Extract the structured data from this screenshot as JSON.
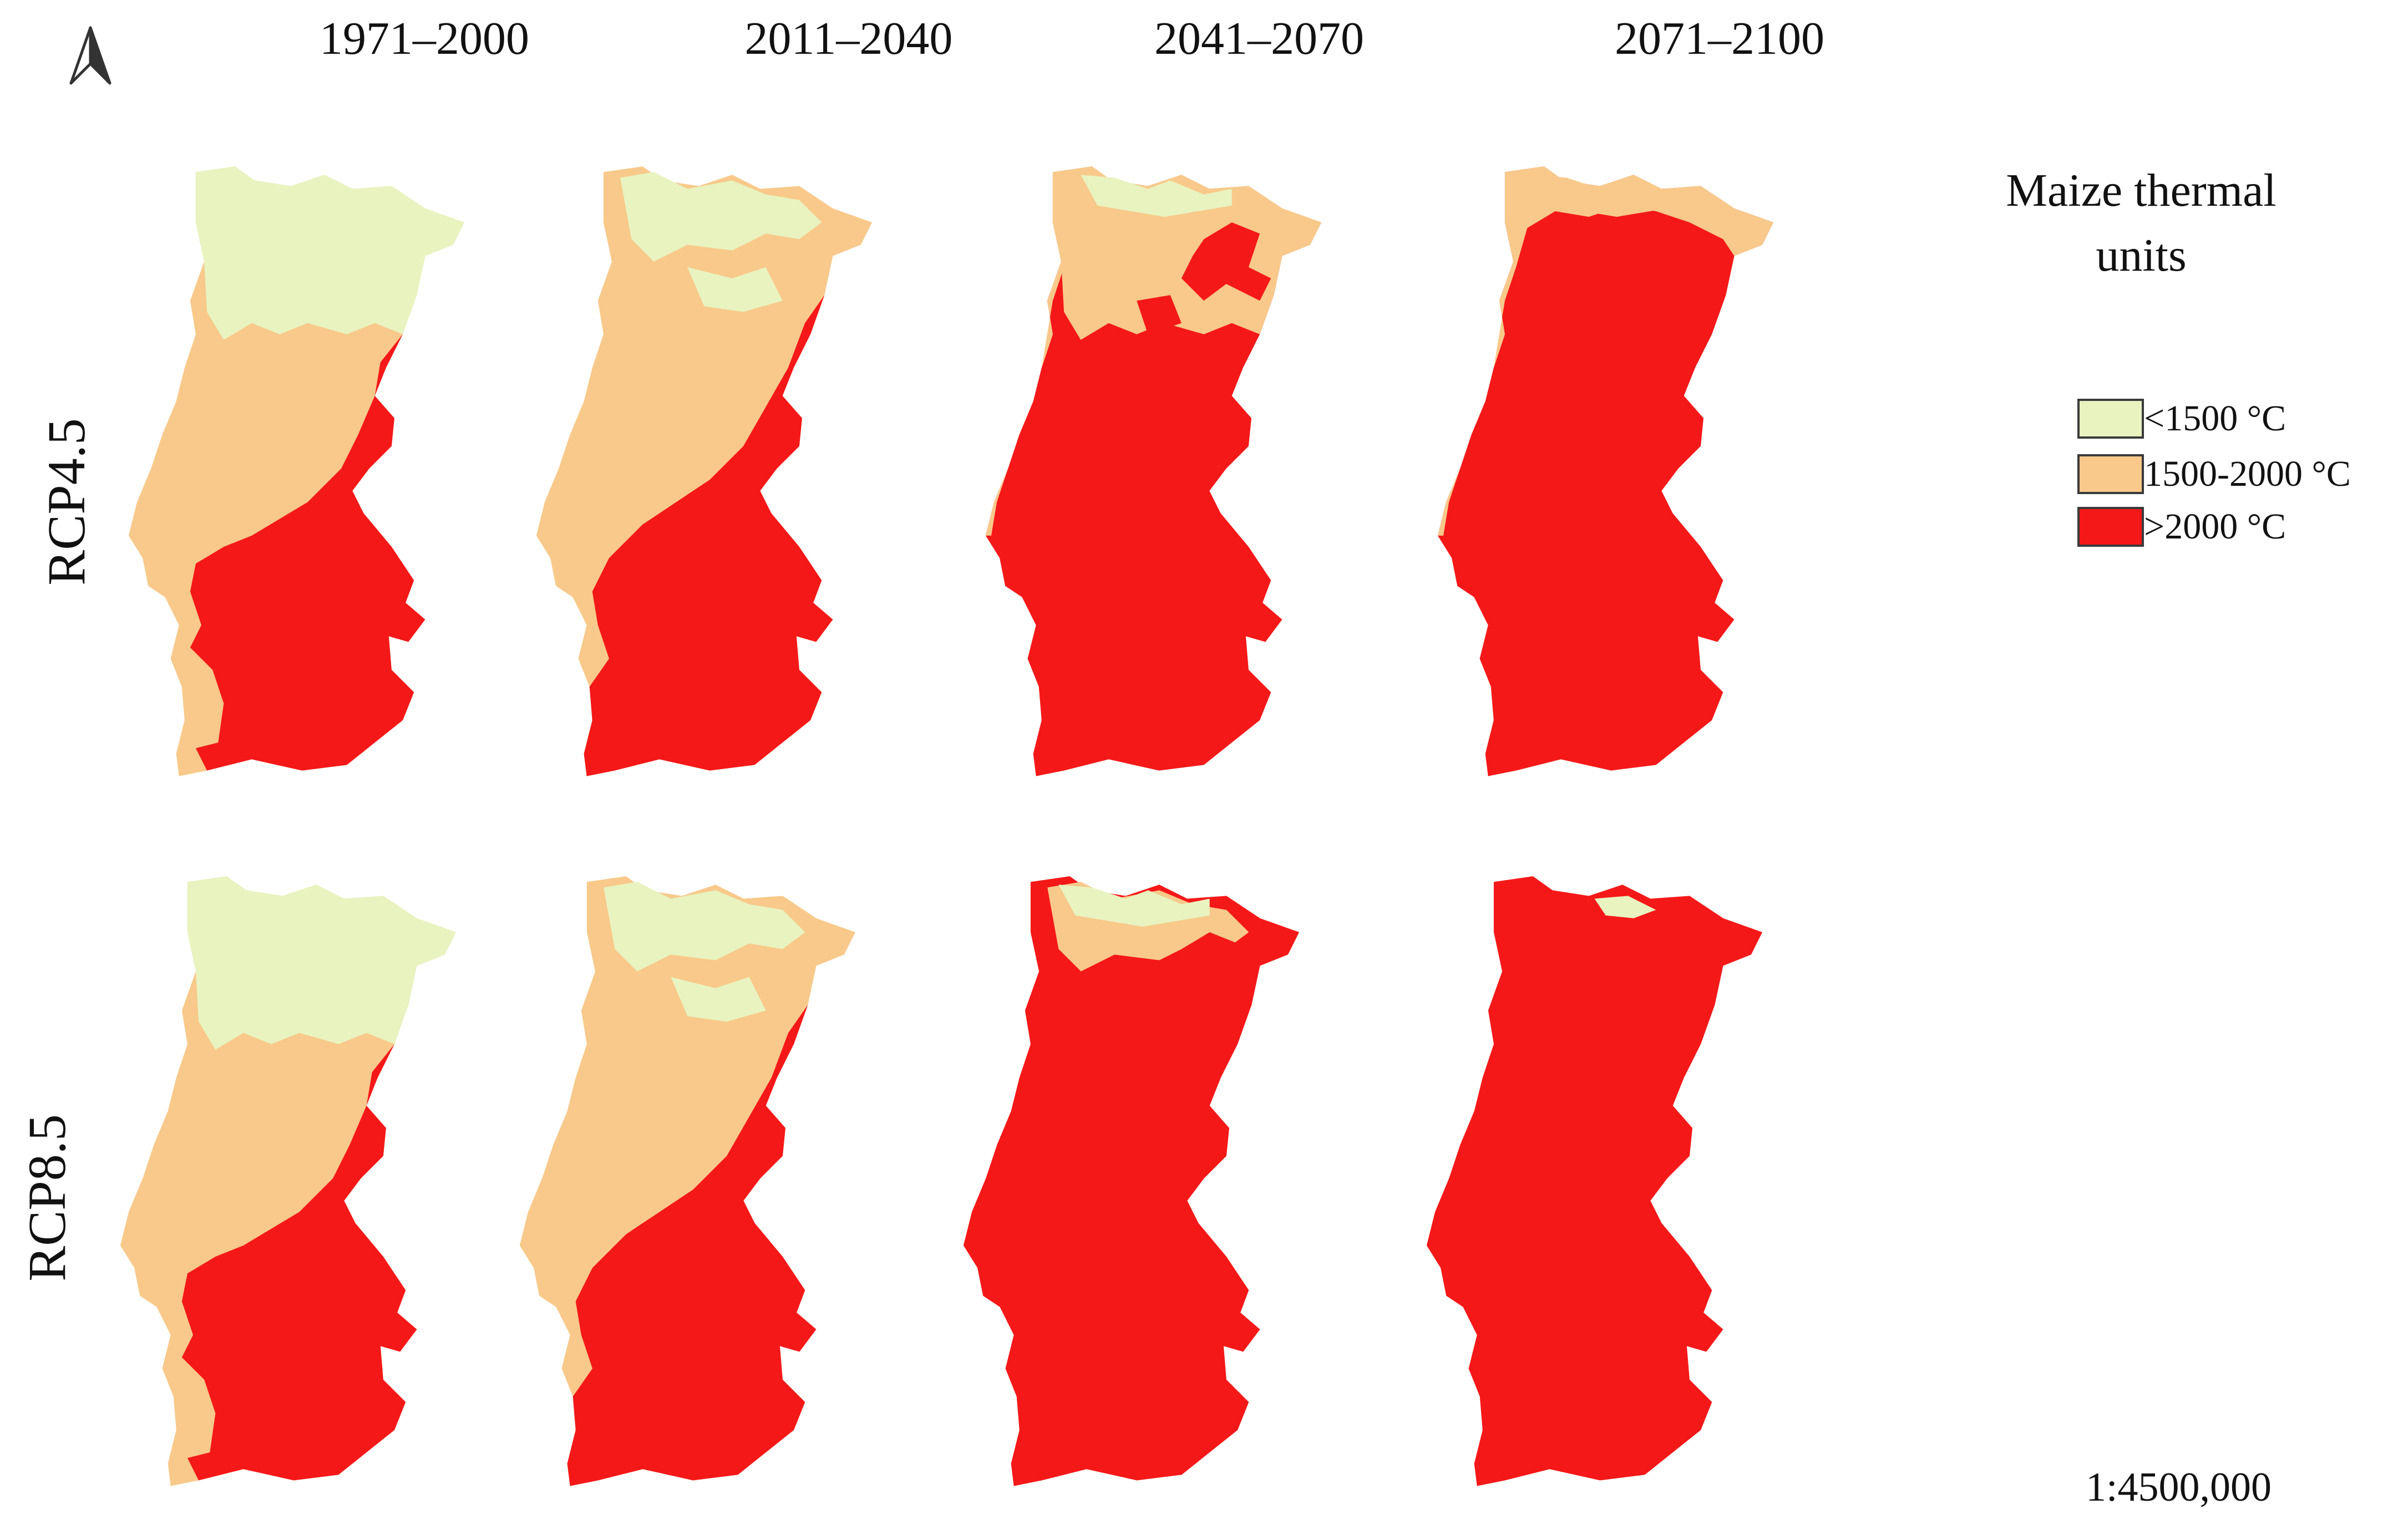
{
  "periods": [
    "1971–2000",
    "2011–2040",
    "2041–2070",
    "2071–2100"
  ],
  "scenarios": [
    "RCP4.5",
    "RCP8.5"
  ],
  "legend": {
    "title_line1": "Maize thermal",
    "title_line2": "units",
    "items": [
      {
        "label": "<1500  °C",
        "color": "#e8f3c0"
      },
      {
        "label": "1500-2000 °C",
        "color": "#f8c98a"
      },
      {
        "label": ">2000 °C",
        "color": "#f51818"
      }
    ]
  },
  "scale": "1:4500,000",
  "north_arrow": "north-arrow-icon",
  "maps": [
    {
      "scenario": "RCP4.5",
      "period": "1971–2000"
    },
    {
      "scenario": "RCP4.5",
      "period": "2011–2040"
    },
    {
      "scenario": "RCP4.5",
      "period": "2041–2070"
    },
    {
      "scenario": "RCP4.5",
      "period": "2071–2100"
    },
    {
      "scenario": "RCP8.5",
      "period": "1971–2000"
    },
    {
      "scenario": "RCP8.5",
      "period": "2011–2040"
    },
    {
      "scenario": "RCP8.5",
      "period": "2041–2070"
    },
    {
      "scenario": "RCP8.5",
      "period": "2071–2100"
    }
  ]
}
